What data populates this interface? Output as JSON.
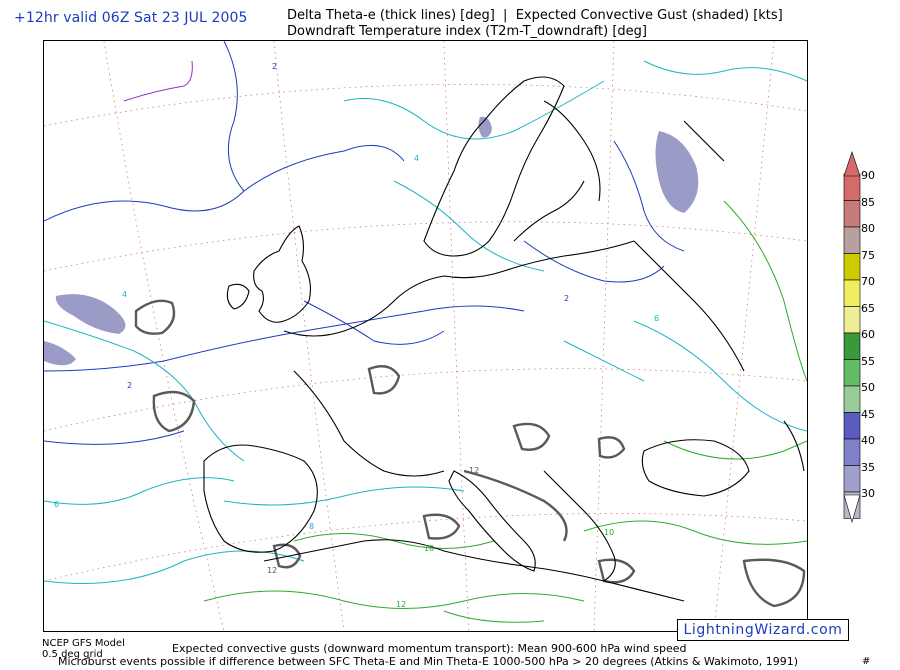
{
  "header": {
    "valid_time": "+12hr valid 06Z Sat 23 JUL 2005",
    "title_line1": "Delta Theta-e (thick lines) [deg]  |  Expected Convective Gust (shaded) [kts]",
    "title_line2": "Downdraft Temperature index (T2m-T_downdraft) [deg]"
  },
  "colorbar": {
    "labels": [
      "90",
      "85",
      "80",
      "75",
      "70",
      "65",
      "60",
      "55",
      "50",
      "45",
      "40",
      "35",
      "30"
    ],
    "colors": [
      "#d46a6a",
      "#c77a7a",
      "#b9a0a0",
      "#cccc00",
      "#eeee60",
      "#eeee99",
      "#3a9a3a",
      "#66bb66",
      "#99cc99",
      "#5c5cc0",
      "#8080c8",
      "#a0a0cc",
      "#b8b8cc"
    ]
  },
  "map": {
    "contour_labels": [
      "2",
      "4",
      "6",
      "8",
      "10",
      "12"
    ],
    "colors": {
      "blue_contour": "#1d3bbf",
      "cyan_contour": "#1ab5c5",
      "green_contour": "#2eaa2e",
      "purple_contour": "#9a2ec8",
      "coastline": "#000000",
      "gust_shade": "#9b9bc8"
    }
  },
  "footer": {
    "model_line1": "NCEP GFS Model",
    "model_line2": "0.5 deg grid",
    "line1": "Expected convective gusts (downward momentum transport): Mean 900-600 hPa wind speed",
    "line2": "Microburst events possible if difference between SFC Theta-E and Min Theta-E 1000-500 hPa > 20 degrees (Atkins & Wakimoto, 1991)",
    "page": "#"
  },
  "brand": "LightningWizard.com"
}
